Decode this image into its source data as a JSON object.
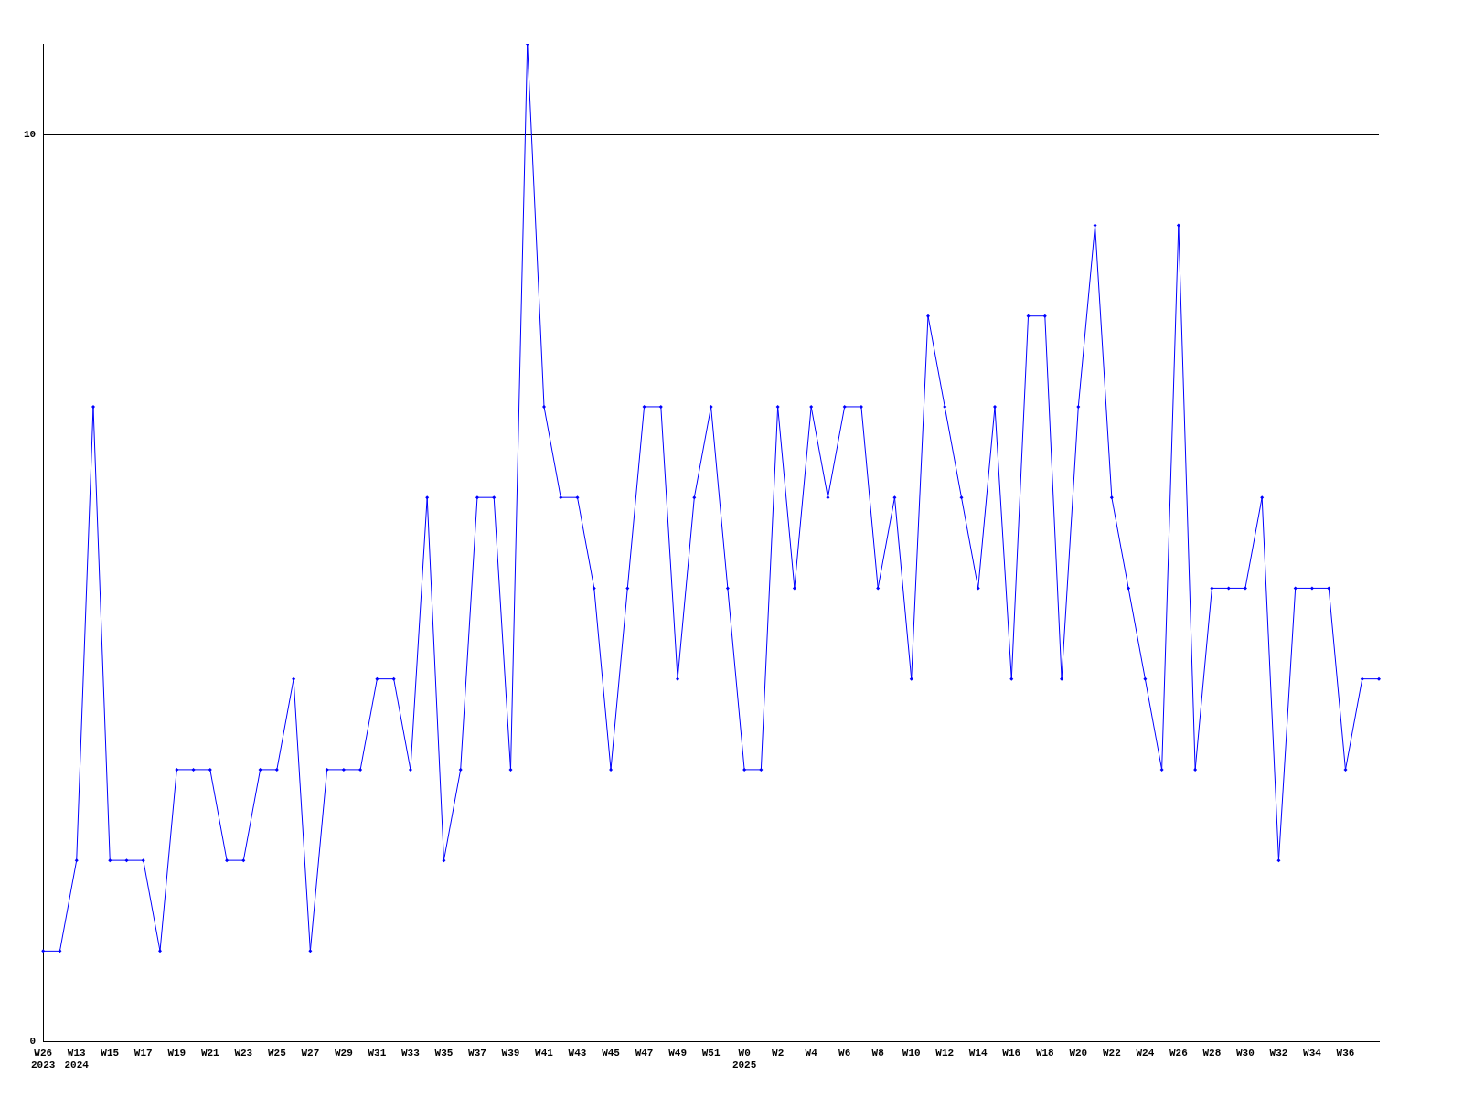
{
  "chart_data": {
    "type": "line",
    "categories": [
      "W26\n2023",
      null,
      "W13\n2024",
      null,
      "W15",
      null,
      "W17",
      null,
      "W19",
      null,
      "W21",
      null,
      "W23",
      null,
      "W25",
      null,
      "W27",
      null,
      "W29",
      null,
      "W31",
      null,
      "W33",
      null,
      "W35",
      null,
      "W37",
      null,
      "W39",
      null,
      "W41",
      null,
      "W43",
      null,
      "W45",
      null,
      "W47",
      null,
      "W49",
      null,
      "W51",
      null,
      "W0\n2025",
      null,
      "W2",
      null,
      "W4",
      null,
      "W6",
      null,
      "W8",
      null,
      "W10",
      null,
      "W12",
      null,
      "W14",
      null,
      "W16",
      null,
      "W18",
      null,
      "W20",
      null,
      "W22",
      null,
      "W24",
      null,
      "W26",
      null,
      "W28",
      null,
      "W30",
      null,
      "W32",
      null,
      "W34",
      null,
      "W36",
      null,
      null
    ],
    "series": [
      {
        "color": "#0000ff",
        "values": [
          1,
          1,
          2,
          7,
          2,
          2,
          2,
          1,
          3,
          3,
          3,
          2,
          2,
          3,
          3,
          4,
          1,
          3,
          3,
          3,
          4,
          4,
          3,
          6,
          2,
          3,
          6,
          6,
          3,
          11,
          7,
          6,
          6,
          5,
          3,
          5,
          7,
          7,
          4,
          6,
          7,
          5,
          3,
          3,
          7,
          5,
          7,
          6,
          7,
          7,
          5,
          6,
          4,
          8,
          7,
          6,
          5,
          7,
          4,
          8,
          8,
          4,
          7,
          9,
          6,
          5,
          4,
          3,
          9,
          3,
          5,
          5,
          5,
          6,
          2,
          5,
          5,
          5,
          3,
          4,
          4
        ]
      }
    ],
    "ylim": [
      0,
      11
    ],
    "yticks": [
      0,
      10
    ],
    "grid": "y",
    "legend": false,
    "marker": "diamond",
    "line_style": "solid"
  }
}
